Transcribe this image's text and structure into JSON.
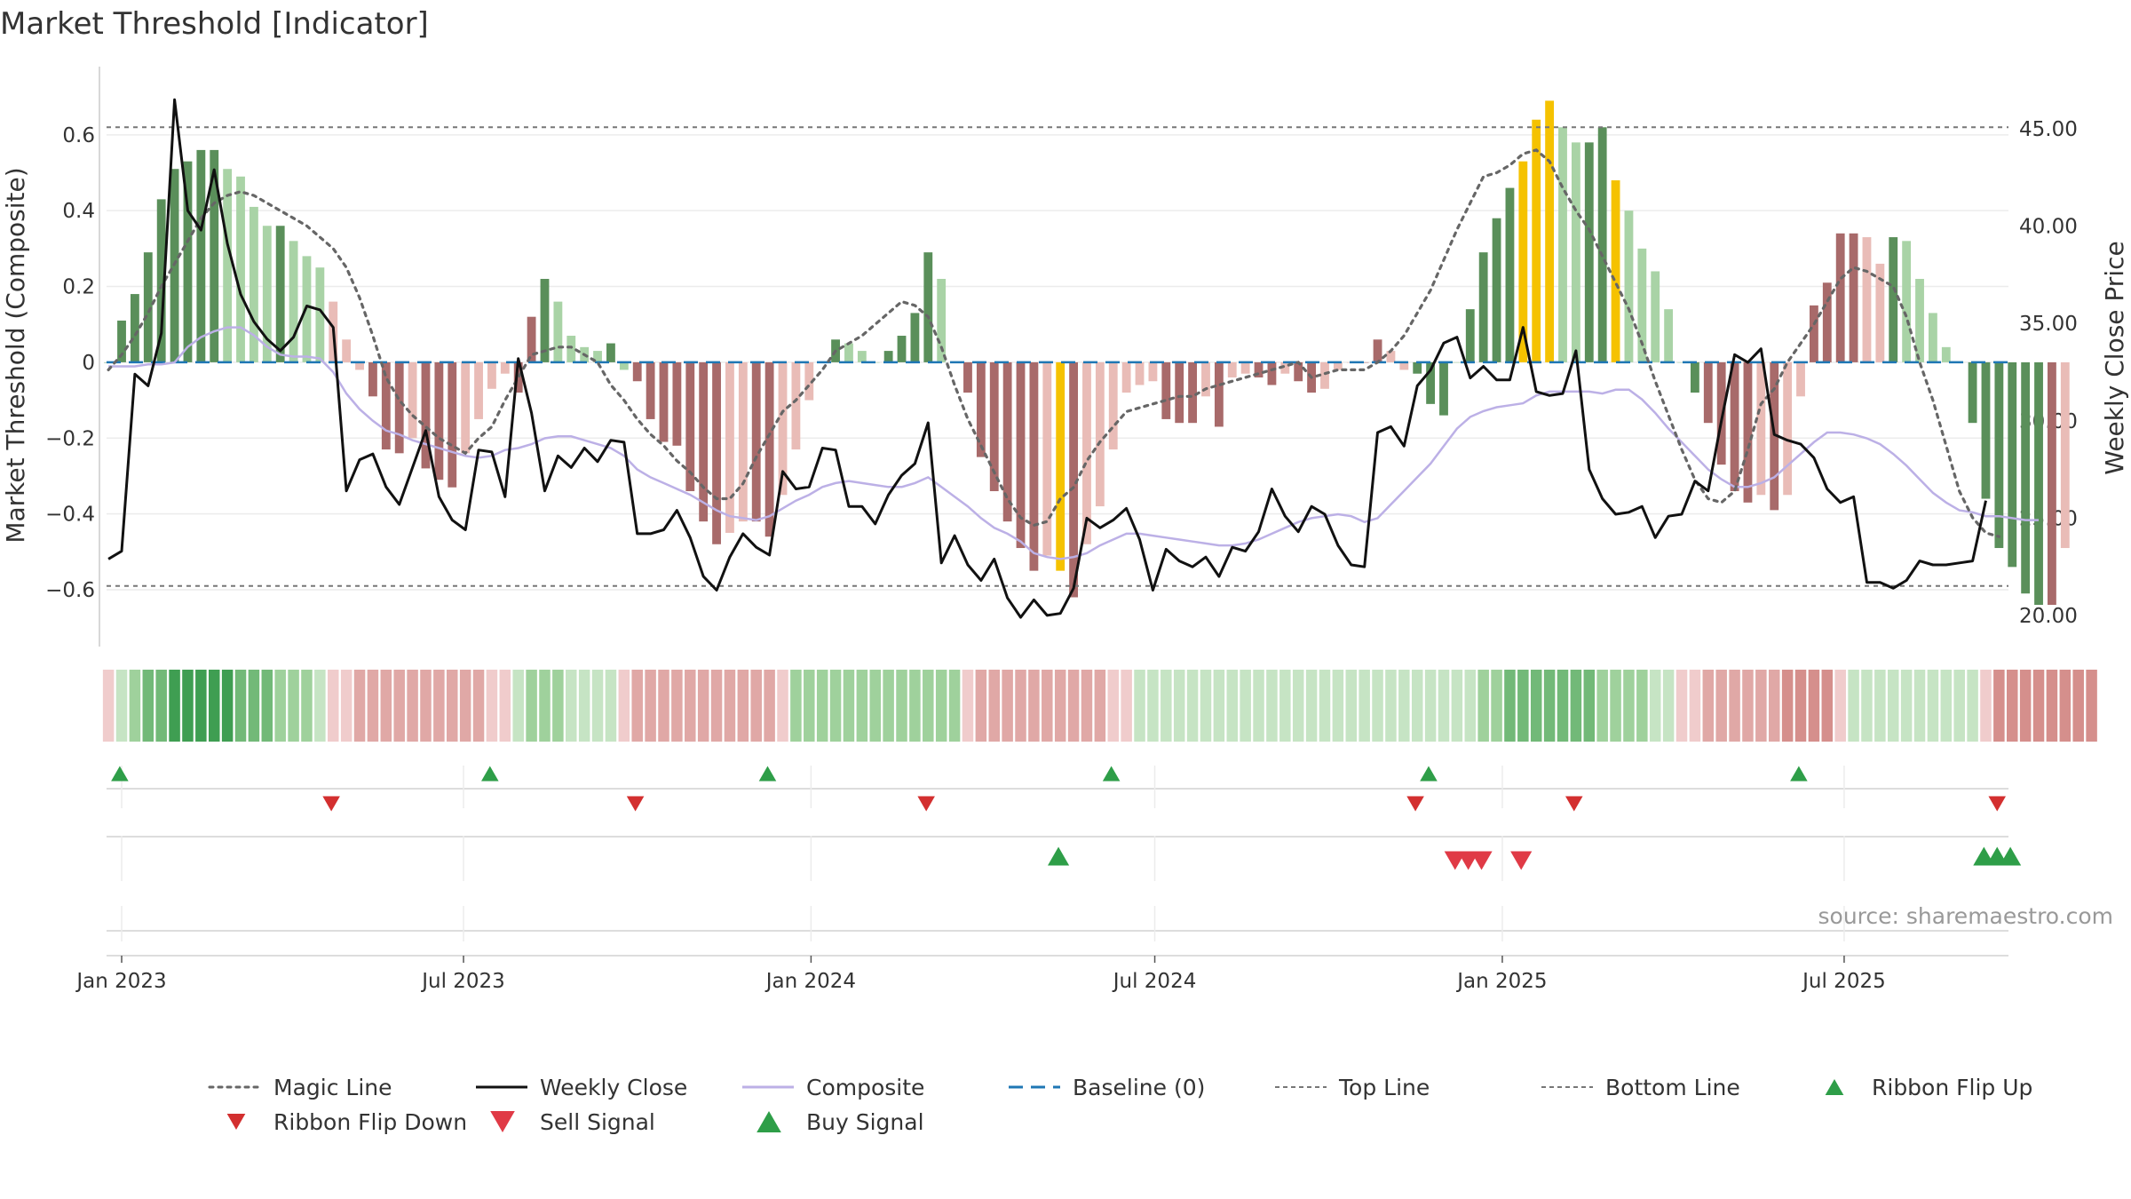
{
  "chart_data": {
    "type": "bar",
    "title": "Market Threshold [Indicator]",
    "ylabel": "Market Threshold (Composite)",
    "y2label": "Weekly Close Price",
    "ylim": [
      -0.75,
      0.78
    ],
    "y2lim": [
      18.4,
      48.2
    ],
    "yticks": [
      -0.6,
      -0.4,
      -0.2,
      0,
      0.2,
      0.4,
      0.6
    ],
    "ytick_labels": [
      "−0.6",
      "−0.4",
      "−0.2",
      "0",
      "0.2",
      "0.4",
      "0.6"
    ],
    "y2ticks": [
      20,
      25,
      30,
      35,
      40,
      45
    ],
    "y2tick_labels": [
      "20.00",
      "25.00",
      "30.00",
      "35.00",
      "40.00",
      "45.00"
    ],
    "xlim": [
      "2022-12-24",
      "2025-09-26"
    ],
    "x_ticks": [
      {
        "date": "2023-01-01",
        "label": "Jan 2023"
      },
      {
        "date": "2023-07-01",
        "label": "Jul 2023"
      },
      {
        "date": "2024-01-01",
        "label": "Jan 2024"
      },
      {
        "date": "2024-07-01",
        "label": "Jul 2024"
      },
      {
        "date": "2025-01-01",
        "label": "Jan 2025"
      },
      {
        "date": "2025-07-01",
        "label": "Jul 2025"
      }
    ],
    "top_line": 0.62,
    "bottom_line": -0.59,
    "baseline": 0,
    "first_week": "2022-12-25",
    "composite_bars": [
      0.0,
      0.11,
      0.18,
      0.29,
      0.43,
      0.51,
      0.53,
      0.56,
      0.56,
      0.51,
      0.49,
      0.41,
      0.36,
      0.36,
      0.32,
      0.28,
      0.25,
      0.16,
      0.06,
      -0.02,
      -0.09,
      -0.23,
      -0.24,
      -0.2,
      -0.28,
      -0.31,
      -0.33,
      -0.24,
      -0.15,
      -0.07,
      -0.03,
      -0.08,
      0.12,
      0.22,
      0.16,
      0.07,
      0.04,
      0.03,
      0.05,
      -0.02,
      -0.05,
      -0.15,
      -0.21,
      -0.22,
      -0.34,
      -0.42,
      -0.48,
      -0.45,
      -0.42,
      -0.42,
      -0.46,
      -0.35,
      -0.23,
      -0.1,
      0.0,
      0.06,
      0.05,
      0.03,
      0.0,
      0.03,
      0.07,
      0.13,
      0.29,
      0.22,
      0.0,
      -0.08,
      -0.25,
      -0.34,
      -0.42,
      -0.49,
      -0.55,
      -0.51,
      -0.55,
      -0.62,
      -0.48,
      -0.38,
      -0.23,
      -0.08,
      -0.06,
      -0.05,
      -0.15,
      -0.16,
      -0.16,
      -0.09,
      -0.17,
      -0.04,
      -0.03,
      -0.04,
      -0.06,
      -0.03,
      -0.05,
      -0.08,
      -0.07,
      -0.02,
      0.0,
      0.0,
      0.06,
      0.03,
      -0.02,
      -0.03,
      -0.11,
      -0.14,
      0.0,
      0.14,
      0.29,
      0.38,
      0.46,
      0.53,
      0.64,
      0.69,
      0.62,
      0.58,
      0.58,
      0.62,
      0.48,
      0.4,
      0.3,
      0.24,
      0.14,
      0.0,
      -0.08,
      -0.16,
      -0.27,
      -0.34,
      -0.37,
      -0.35,
      -0.39,
      -0.35,
      -0.09,
      0.15,
      0.21,
      0.34,
      0.34,
      0.33,
      0.26,
      0.33,
      0.32,
      0.22,
      0.13,
      0.04,
      0.0,
      -0.16,
      -0.36,
      -0.49,
      -0.54,
      -0.61,
      -0.64,
      -0.64,
      -0.49
    ],
    "bar_state": "gggggggggggggggggrrrrrrrrrrrrrrrrgggggggrrrrrrrrrrrrrrrggggggggggrrrrrrryrrrrrrrrrrrrrrrrrrrrrrrrrrggggggggyyyggggyggggggrrrrrrrrrrrrrrggggggggggggrrrrrrryyyr",
    "weekly_close": [
      22.9,
      23.3,
      32.4,
      31.8,
      34.5,
      46.5,
      40.8,
      39.8,
      42.9,
      39.1,
      36.5,
      35.1,
      34.2,
      33.6,
      34.3,
      35.9,
      35.7,
      34.8,
      26.4,
      28.0,
      28.3,
      26.6,
      25.7,
      27.6,
      29.5,
      26.1,
      24.9,
      24.4,
      28.5,
      28.4,
      26.1,
      33.2,
      30.4,
      26.4,
      28.2,
      27.6,
      28.6,
      27.9,
      29.0,
      28.9,
      24.2,
      24.2,
      24.4,
      25.4,
      24.0,
      22.0,
      21.3,
      23.0,
      24.2,
      23.5,
      23.1,
      27.4,
      26.5,
      26.6,
      28.6,
      28.5,
      25.6,
      25.6,
      24.7,
      26.2,
      27.2,
      27.8,
      29.9,
      22.7,
      24.1,
      22.6,
      21.8,
      22.9,
      20.9,
      19.9,
      20.8,
      20.0,
      20.1,
      21.4,
      25.0,
      24.5,
      24.9,
      25.5,
      23.9,
      21.3,
      23.4,
      22.8,
      22.5,
      23.0,
      22.0,
      23.5,
      23.3,
      24.3,
      26.5,
      25.1,
      24.3,
      25.6,
      25.2,
      23.6,
      22.6,
      22.5,
      29.4,
      29.7,
      28.7,
      31.8,
      32.6,
      34.0,
      34.3,
      32.2,
      32.8,
      32.1,
      32.1,
      34.8,
      31.5,
      31.3,
      31.4,
      33.6,
      27.5,
      26.0,
      25.2,
      25.3,
      25.6,
      24.0,
      25.1,
      25.2,
      26.9,
      26.4,
      30.0,
      33.4,
      33.0,
      33.7,
      29.3,
      29.0,
      28.8,
      28.1,
      26.5,
      25.8,
      26.1,
      21.7,
      21.7,
      21.4,
      21.8,
      22.8,
      22.6,
      22.6,
      22.7,
      22.8,
      25.9
    ],
    "composite_line": [
      32.8,
      32.8,
      32.8,
      32.9,
      32.9,
      33.0,
      33.8,
      34.3,
      34.6,
      34.8,
      34.8,
      34.4,
      33.8,
      33.4,
      33.3,
      33.3,
      33.2,
      32.5,
      31.4,
      30.6,
      30.0,
      29.5,
      29.3,
      29.0,
      28.8,
      28.6,
      28.4,
      28.2,
      28.1,
      28.2,
      28.5,
      28.6,
      28.8,
      29.1,
      29.2,
      29.2,
      29.0,
      28.8,
      28.6,
      28.2,
      27.5,
      27.1,
      26.8,
      26.5,
      26.2,
      25.8,
      25.4,
      25.1,
      25.0,
      24.9,
      25.1,
      25.5,
      25.9,
      26.2,
      26.6,
      26.8,
      26.9,
      26.8,
      26.7,
      26.6,
      26.6,
      26.8,
      27.1,
      26.6,
      26.1,
      25.6,
      25.0,
      24.5,
      24.2,
      23.8,
      23.2,
      23.0,
      22.9,
      23.0,
      23.2,
      23.6,
      23.9,
      24.2,
      24.2,
      24.1,
      24.0,
      23.9,
      23.8,
      23.7,
      23.6,
      23.6,
      23.7,
      23.9,
      24.2,
      24.5,
      24.8,
      25.0,
      25.1,
      25.2,
      25.1,
      24.8,
      25.0,
      25.7,
      26.4,
      27.1,
      27.8,
      28.7,
      29.6,
      30.2,
      30.5,
      30.7,
      30.8,
      30.9,
      31.3,
      31.5,
      31.5,
      31.5,
      31.5,
      31.4,
      31.6,
      31.6,
      31.1,
      30.4,
      29.6,
      28.9,
      28.2,
      27.5,
      27.0,
      26.6,
      26.6,
      26.8,
      27.1,
      27.7,
      28.3,
      28.9,
      29.4,
      29.4,
      29.3,
      29.1,
      28.8,
      28.3,
      27.7,
      27.0,
      26.3,
      25.8,
      25.4,
      25.3,
      25.1,
      25.1,
      25.0,
      24.9,
      24.9
    ],
    "magic_line": [
      -0.02,
      0.02,
      0.07,
      0.13,
      0.2,
      0.26,
      0.32,
      0.38,
      0.42,
      0.44,
      0.45,
      0.44,
      0.42,
      0.4,
      0.38,
      0.36,
      0.33,
      0.3,
      0.25,
      0.17,
      0.07,
      -0.04,
      -0.1,
      -0.14,
      -0.17,
      -0.2,
      -0.22,
      -0.24,
      -0.2,
      -0.17,
      -0.1,
      -0.04,
      0.02,
      0.03,
      0.04,
      0.04,
      0.02,
      0.0,
      -0.06,
      -0.1,
      -0.15,
      -0.19,
      -0.22,
      -0.26,
      -0.29,
      -0.33,
      -0.36,
      -0.36,
      -0.32,
      -0.25,
      -0.19,
      -0.13,
      -0.1,
      -0.06,
      -0.02,
      0.03,
      0.05,
      0.07,
      0.1,
      0.13,
      0.16,
      0.15,
      0.12,
      0.04,
      -0.06,
      -0.15,
      -0.22,
      -0.29,
      -0.36,
      -0.41,
      -0.43,
      -0.42,
      -0.36,
      -0.33,
      -0.26,
      -0.21,
      -0.17,
      -0.13,
      -0.12,
      -0.11,
      -0.1,
      -0.09,
      -0.09,
      -0.07,
      -0.06,
      -0.05,
      -0.04,
      -0.03,
      -0.02,
      -0.01,
      0.0,
      -0.04,
      -0.03,
      -0.02,
      -0.02,
      -0.02,
      0.0,
      0.03,
      0.07,
      0.13,
      0.19,
      0.27,
      0.35,
      0.42,
      0.49,
      0.5,
      0.52,
      0.55,
      0.56,
      0.53,
      0.46,
      0.4,
      0.35,
      0.28,
      0.21,
      0.14,
      0.05,
      -0.05,
      -0.14,
      -0.23,
      -0.31,
      -0.36,
      -0.37,
      -0.34,
      -0.23,
      -0.11,
      -0.07,
      0.0,
      0.05,
      0.1,
      0.16,
      0.22,
      0.25,
      0.24,
      0.22,
      0.2,
      0.12,
      0.0,
      -0.1,
      -0.22,
      -0.34,
      -0.41,
      -0.45,
      -0.46
    ],
    "ribbon": [
      -1,
      1,
      2,
      3,
      3,
      4,
      4,
      4,
      4,
      4,
      3,
      3,
      3,
      2,
      2,
      2,
      1,
      -1,
      -1,
      -2,
      -2,
      -2,
      -2,
      -2,
      -2,
      -2,
      -2,
      -2,
      -2,
      -1,
      -1,
      1,
      2,
      2,
      2,
      1,
      1,
      1,
      1,
      -1,
      -2,
      -2,
      -2,
      -2,
      -2,
      -2,
      -2,
      -2,
      -2,
      -2,
      -2,
      -1,
      2,
      2,
      2,
      2,
      2,
      2,
      2,
      2,
      2,
      2,
      2,
      2,
      2,
      -1,
      -2,
      -2,
      -2,
      -2,
      -2,
      -2,
      -2,
      -2,
      -2,
      -2,
      -1,
      -1,
      1,
      1,
      1,
      1,
      1,
      1,
      1,
      1,
      1,
      1,
      1,
      1,
      1,
      1,
      1,
      1,
      1,
      1,
      1,
      1,
      1,
      1,
      1,
      1,
      1,
      1,
      2,
      2,
      3,
      3,
      3,
      3,
      3,
      3,
      3,
      2,
      2,
      2,
      2,
      1,
      1,
      -1,
      -1,
      -2,
      -2,
      -2,
      -2,
      -2,
      -2,
      -3,
      -3,
      -3,
      -3,
      -1,
      1,
      1,
      1,
      1,
      1,
      1,
      1,
      1,
      1,
      1,
      -1,
      -3,
      -3,
      -3,
      -3,
      -3,
      -3,
      -3,
      -3
    ],
    "ribbon_flip_up": [
      "2022-12-31",
      "2023-07-15",
      "2023-12-09",
      "2024-06-08",
      "2024-11-23",
      "2025-06-07"
    ],
    "ribbon_flip_down": [
      "2023-04-22",
      "2023-09-30",
      "2024-03-02",
      "2024-11-16",
      "2025-02-08",
      "2025-09-20"
    ],
    "buy_signal": [
      "2024-05-11",
      "2025-09-13",
      "2025-09-20",
      "2025-09-27"
    ],
    "sell_signal": [
      "2024-12-07",
      "2024-12-14",
      "2024-12-21",
      "2025-01-11"
    ],
    "source": "source: sharemaestro.com",
    "legend": [
      "Magic Line",
      "Weekly Close",
      "Composite",
      "Baseline (0)",
      "Top Line",
      "Bottom Line",
      "Ribbon Flip Up",
      "Ribbon Flip Down",
      "Sell Signal",
      "Buy Signal"
    ]
  },
  "colors": {
    "green_dark": "#5a8f5a",
    "green_light": "#a9d3a6",
    "red_dark": "#a86a6a",
    "red_light": "#e9bcb7",
    "yellow": "#f5c200",
    "close_line": "#111111",
    "composite_line": "#bcb0e6",
    "magic_line": "#666666",
    "baseline": "#1f77b4",
    "ref_line": "#777777",
    "flip_up": "#2e9e48",
    "flip_down": "#d32f2f",
    "sell": "#e03a46",
    "buy": "#2e9e48"
  }
}
